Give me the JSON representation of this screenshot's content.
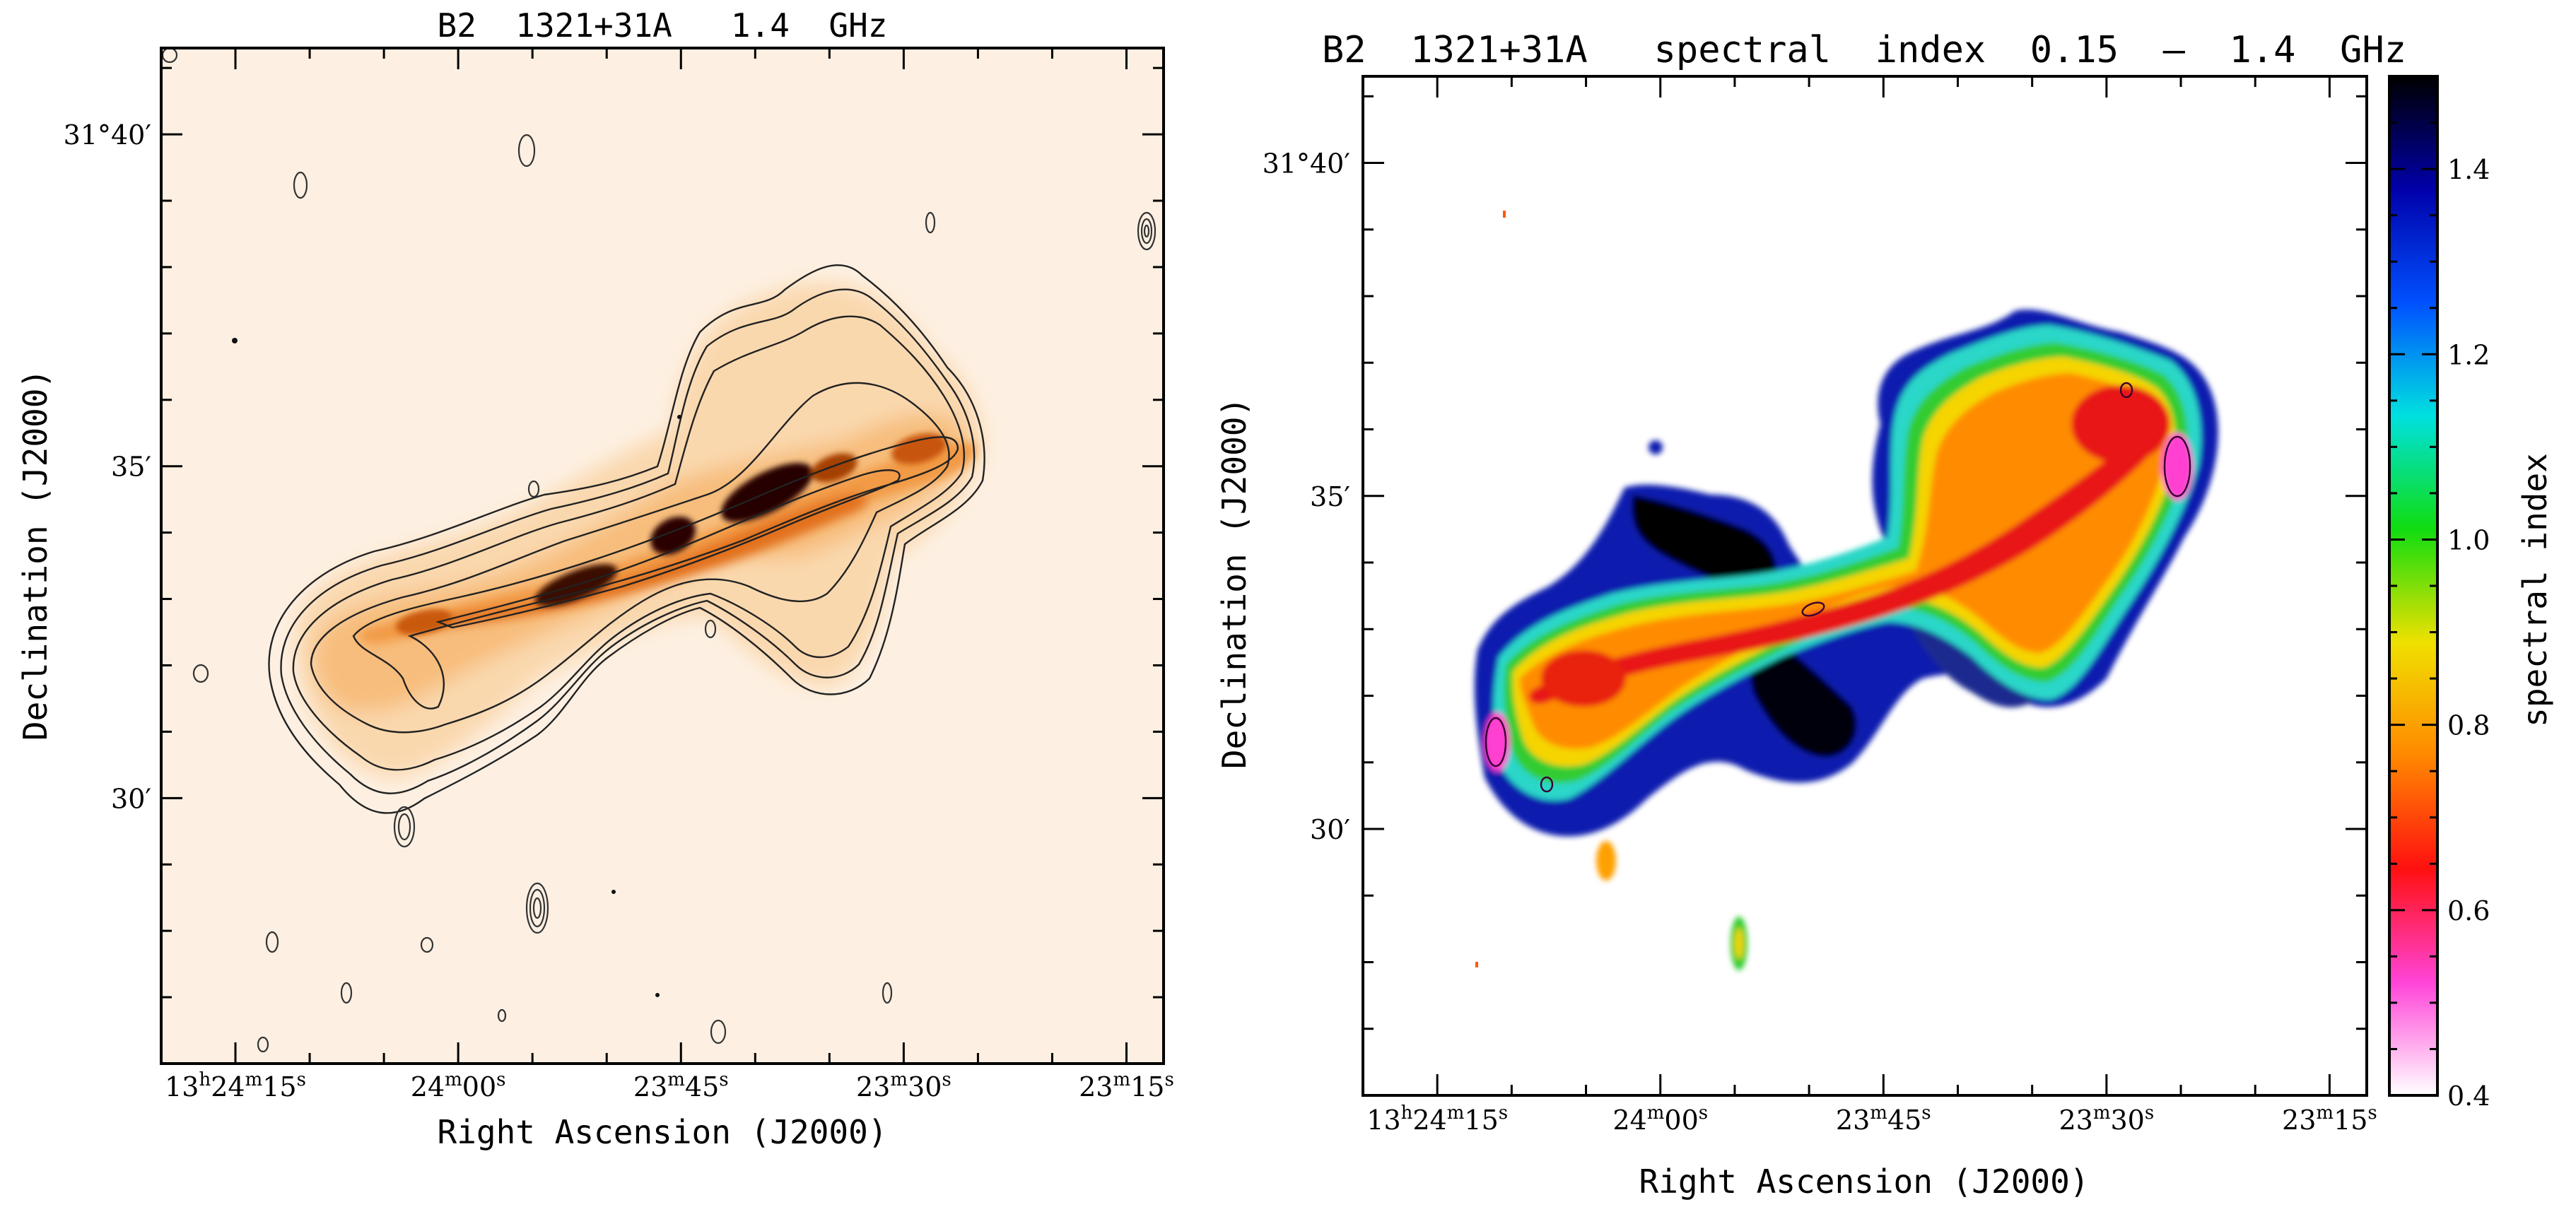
{
  "chart_data": [
    {
      "type": "heatmap",
      "title": "B2  1321+31A   1.4  GHz",
      "xlabel": "Right Ascension (J2000)",
      "ylabel": "Declination (J2000)",
      "colormap": "white-orange-black with contours",
      "x_ticks": [
        {
          "hms": "13h24m15s",
          "label": [
            "13",
            "h",
            "24",
            "m",
            "15",
            "s"
          ]
        },
        {
          "hms": "13h24m00s",
          "label": [
            "24",
            "m",
            "00",
            "s"
          ]
        },
        {
          "hms": "13h23m45s",
          "label": [
            "23",
            "m",
            "45",
            "s"
          ]
        },
        {
          "hms": "13h23m30s",
          "label": [
            "23",
            "m",
            "30",
            "s"
          ]
        },
        {
          "hms": "13h23m15s",
          "label": [
            "23",
            "m",
            "15",
            "s"
          ]
        }
      ],
      "y_ticks": [
        {
          "arcmin": 40,
          "label": "31°40′"
        },
        {
          "arcmin": 35,
          "label": "35′"
        },
        {
          "arcmin": 30,
          "label": "30′"
        }
      ],
      "xlim_seconds": [
        1460,
        1392.5
      ],
      "ylim_arcmin": [
        26.0,
        41.3
      ]
    },
    {
      "type": "heatmap",
      "title": "B2  1321+31A   spectral  index  0.15  –  1.4  GHz",
      "xlabel": "Right Ascension (J2000)",
      "ylabel": "Declination (J2000)",
      "colorbar": {
        "label": "spectral index",
        "range": [
          0.4,
          1.5
        ],
        "ticks": [
          "0.4",
          "0.6",
          "0.8",
          "1.0",
          "1.2",
          "1.4"
        ],
        "tick_values": [
          0.4,
          0.6,
          0.8,
          1.0,
          1.2,
          1.4
        ],
        "colors": [
          "#ffffff",
          "#ff44d8",
          "#ff1010",
          "#ff8800",
          "#f0e000",
          "#10dd10",
          "#00e0e0",
          "#0050ff",
          "#0000aa",
          "#000000"
        ]
      },
      "x_ticks": [
        {
          "hms": "13h24m15s",
          "label": [
            "13",
            "h",
            "24",
            "m",
            "15",
            "s"
          ]
        },
        {
          "hms": "13h24m00s",
          "label": [
            "24",
            "m",
            "00",
            "s"
          ]
        },
        {
          "hms": "13h23m45s",
          "label": [
            "23",
            "m",
            "45",
            "s"
          ]
        },
        {
          "hms": "13h23m30s",
          "label": [
            "23",
            "m",
            "30",
            "s"
          ]
        },
        {
          "hms": "13h23m15s",
          "label": [
            "23",
            "m",
            "15",
            "s"
          ]
        }
      ],
      "y_ticks": [
        {
          "arcmin": 40,
          "label": "31°40′"
        },
        {
          "arcmin": 35,
          "label": "35′"
        },
        {
          "arcmin": 30,
          "label": "30′"
        }
      ],
      "xlim_seconds": [
        1460,
        1392.5
      ],
      "ylim_arcmin": [
        26.0,
        41.3
      ]
    }
  ]
}
